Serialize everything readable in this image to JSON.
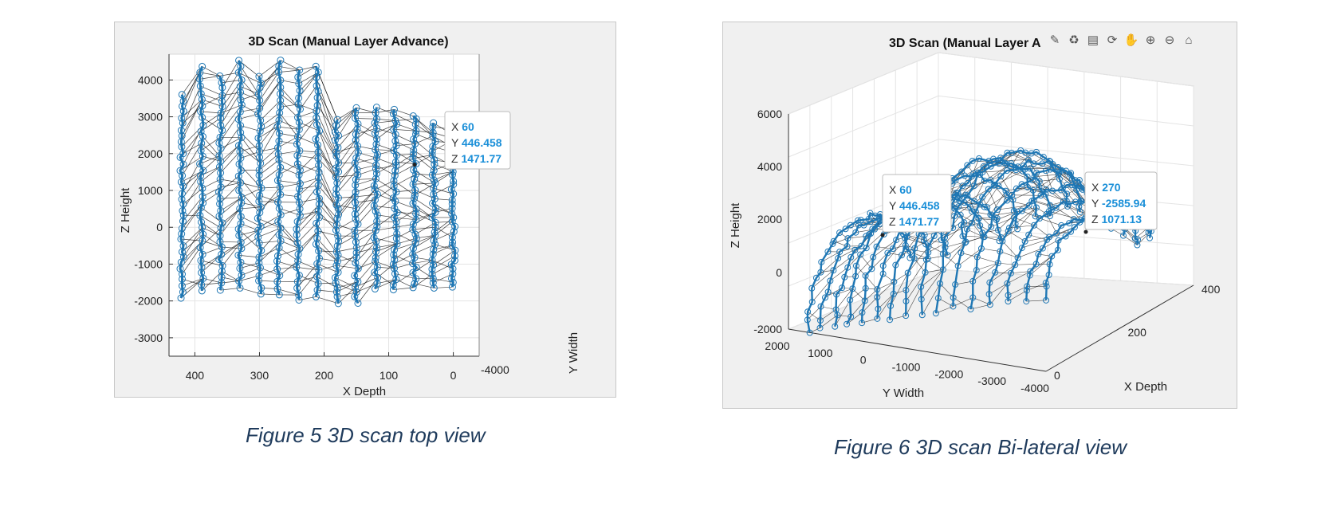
{
  "chart_data": [
    {
      "type": "scatter",
      "view": "top",
      "title": "3D Scan (Manual Layer Advance)",
      "xlabel": "X Depth",
      "ylabel": "Y Width",
      "zlabel": "Z Height",
      "xticks": [
        400,
        300,
        200,
        100,
        0
      ],
      "zticks": [
        4000,
        3000,
        2000,
        1000,
        0,
        -1000,
        -2000,
        -3000
      ],
      "yticks": [
        -4000
      ],
      "xlim": [
        440,
        -40
      ],
      "zlim": [
        -3500,
        4700
      ],
      "grid": true,
      "series_color": "#1f77b4",
      "mesh_color": "#000000",
      "layers_x": [
        420,
        390,
        360,
        330,
        300,
        270,
        240,
        210,
        180,
        150,
        120,
        90,
        60,
        30,
        0
      ],
      "layer_top_z": [
        3600,
        4350,
        4100,
        4550,
        4100,
        4550,
        4250,
        4400,
        2900,
        3250,
        3250,
        3200,
        3050,
        2850,
        2800
      ],
      "layer_bottom_z": [
        -1900,
        -1750,
        -1700,
        -1650,
        -1800,
        -1850,
        -2000,
        -1900,
        -2050,
        -2050,
        -1650,
        -1700,
        -1650,
        -1650,
        -1650
      ],
      "datatip": {
        "x_label": "X",
        "x": "60",
        "y_label": "Y",
        "y": "446.458",
        "z_label": "Z",
        "z": "1471.77",
        "anchor_x": 60,
        "anchor_z": 1700
      }
    },
    {
      "type": "scatter",
      "view": "3d",
      "title": "3D Scan (Manual Layer A",
      "xlabel": "X Depth",
      "ylabel": "Y Width",
      "zlabel": "Z Height",
      "xticks": [
        0,
        200,
        400
      ],
      "yticks": [
        2000,
        1000,
        0,
        -1000,
        -2000,
        -3000,
        -4000
      ],
      "zticks": [
        6000,
        4000,
        2000,
        0,
        -2000
      ],
      "grid": true,
      "series_color": "#1f77b4",
      "toolbar_icons": [
        "brush-icon",
        "data-tip-icon",
        "legend-icon",
        "rotate-icon",
        "pan-icon",
        "zoom-in-icon",
        "zoom-out-icon",
        "home-icon"
      ],
      "datatips": [
        {
          "x_label": "X",
          "x": "60",
          "y_label": "Y",
          "y": "446.458",
          "z_label": "Z",
          "z": "1471.77"
        },
        {
          "x_label": "X",
          "x": "270",
          "y_label": "Y",
          "y": "-2585.94",
          "z_label": "Z",
          "z": "1071.13"
        }
      ]
    }
  ],
  "captions": {
    "fig1": "Figure 5 3D scan top view",
    "fig2": "Figure 6 3D scan Bi-lateral view"
  }
}
